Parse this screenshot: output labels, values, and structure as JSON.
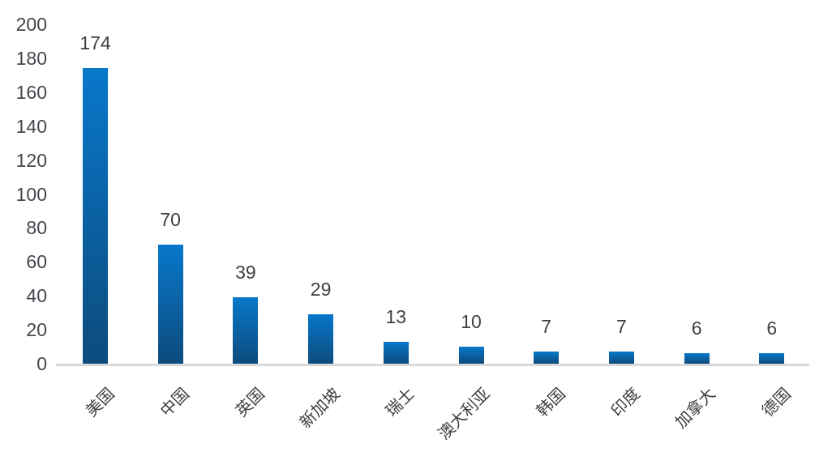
{
  "chart_data": {
    "type": "bar",
    "title": "",
    "xlabel": "",
    "ylabel": "",
    "categories": [
      "美国",
      "中国",
      "英国",
      "新加坡",
      "瑞士",
      "澳大利亚",
      "韩国",
      "印度",
      "加拿大",
      "德国"
    ],
    "values": [
      174,
      70,
      39,
      29,
      13,
      10,
      7,
      7,
      6,
      6
    ],
    "yticks": [
      0,
      20,
      40,
      60,
      80,
      100,
      120,
      140,
      160,
      180,
      200
    ],
    "ylim": [
      0,
      200
    ],
    "grid": false,
    "legend_position": "none",
    "data_labels_shown": true,
    "colors": {
      "bar_gradient_top": "#0878cb",
      "bar_gradient_bottom": "#0d4b7c",
      "axis_line": "#d9d9d9",
      "tick_label_text": "#44474d",
      "data_label_text": "#404040",
      "category_label_text": "#404040",
      "background": "#ffffff"
    }
  }
}
